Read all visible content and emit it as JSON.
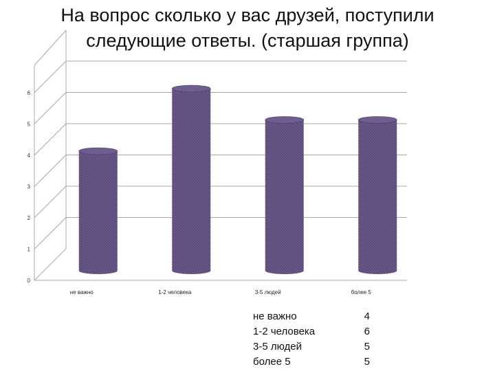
{
  "title": {
    "line1": "На вопрос сколько у вас друзей, поступили",
    "line2": "следующие ответы. (старшая группа)"
  },
  "chart_data": {
    "type": "bar",
    "categories": [
      "не важно",
      "1-2 человека",
      "3-5 людей",
      "более 5"
    ],
    "values": [
      4,
      6,
      5,
      5
    ],
    "ylim": [
      0,
      6
    ],
    "yticks": [
      0,
      1,
      2,
      3,
      4,
      5,
      6
    ],
    "grid": true,
    "legend": "none",
    "bar_color": "#5b4a7a"
  },
  "table": [
    {
      "label": "не важно",
      "value": "4"
    },
    {
      "label": "1-2 человека",
      "value": "6"
    },
    {
      "label": "3-5 людей",
      "value": "5"
    },
    {
      "label": "более 5",
      "value": "5"
    }
  ]
}
